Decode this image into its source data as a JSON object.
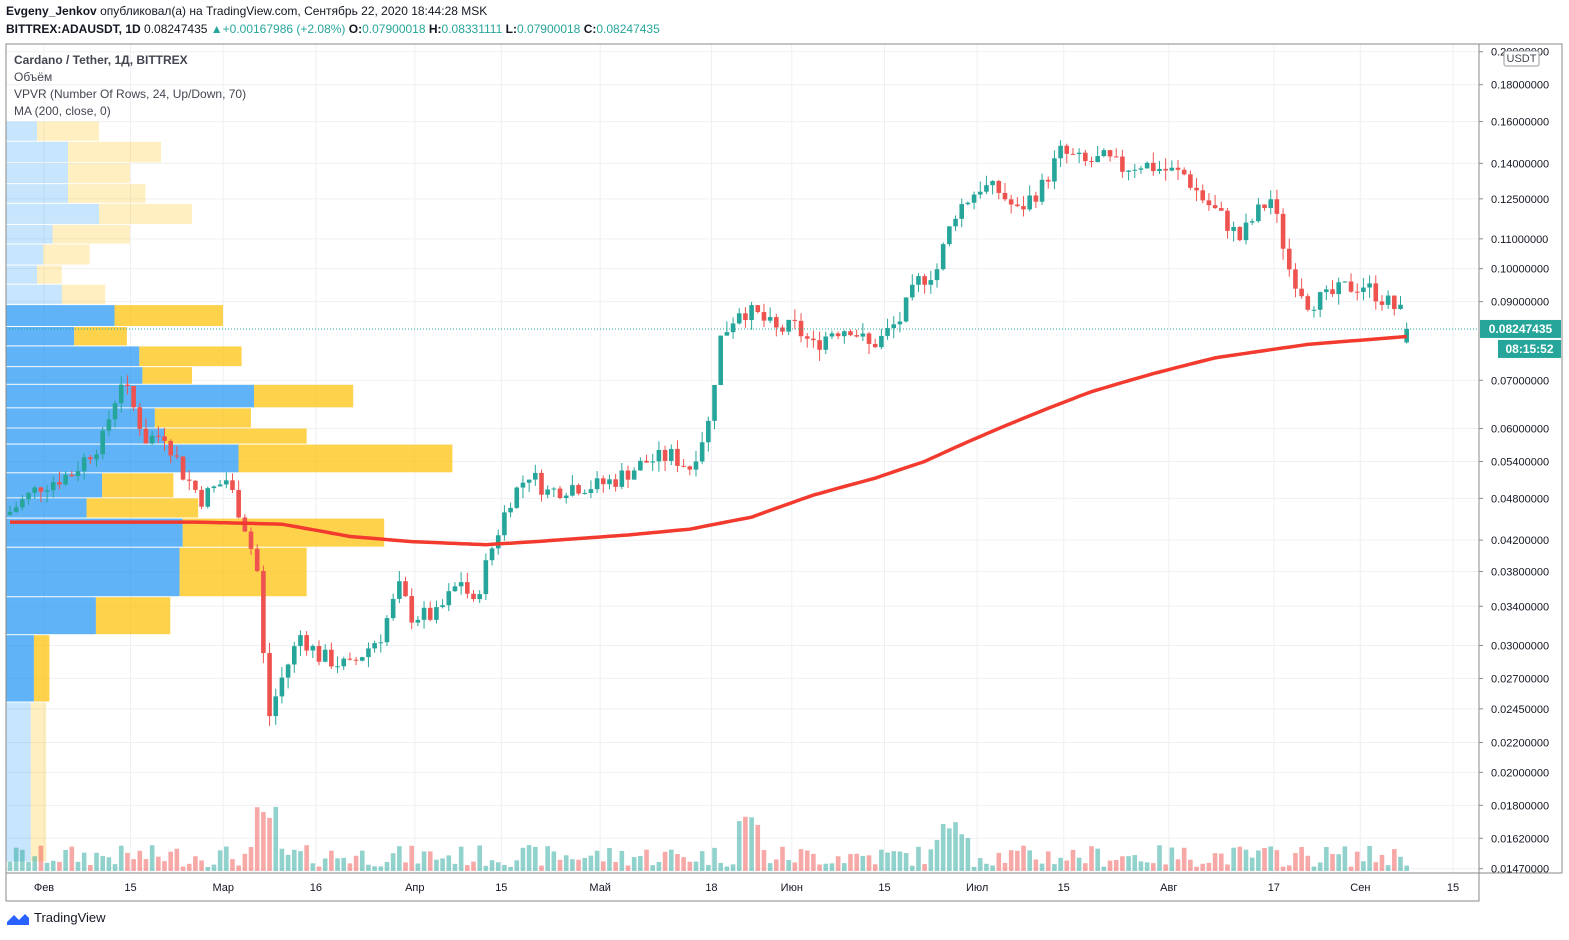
{
  "header": {
    "author": "Evgeny_Jenkov",
    "published_text": "опубликовал(а) на TradingView.com, Сентябрь 22, 2020 18:44:28 MSK",
    "symbol": "BITTREX:ADAUSDT, 1D",
    "last": "0.08247435",
    "change": "▲+0.00167986 (+2.08%)",
    "o_label": "O:",
    "o_value": "0.07900018",
    "h_label": "H:",
    "h_value": "0.08331111",
    "l_label": "L:",
    "l_value": "0.07900018",
    "c_label": "C:",
    "c_value": "0.08247435"
  },
  "legend": {
    "title": "Cardano / Tether, 1Д, BITTREX",
    "volume": "Объём",
    "vpvr": "VPVR (Number Of Rows, 24, Up/Down, 70)",
    "ma": "MA (200, close, 0)"
  },
  "footer": {
    "brand": "TradingView"
  },
  "colors": {
    "up": "#26a69a",
    "down": "#ef5350",
    "ma": "#f23b2e",
    "vp_up": "#2196f3",
    "vp_down": "#ffc107"
  },
  "chart_data": {
    "type": "candlestick",
    "title": "Cardano / Tether, 1Д, BITTREX",
    "currency": "USDT",
    "y_scale": "log",
    "ylim": [
      0.0145,
      0.205
    ],
    "y_ticks": [
      "0.20000000",
      "0.18000000",
      "0.16000000",
      "0.14000000",
      "0.12500000",
      "0.11000000",
      "0.10000000",
      "0.09000000",
      "0.07000000",
      "0.06000000",
      "0.05400000",
      "0.04800000",
      "0.04200000",
      "0.03800000",
      "0.03400000",
      "0.03000000",
      "0.02700000",
      "0.02450000",
      "0.02200000",
      "0.02000000",
      "0.01800000",
      "0.01620000",
      "0.01470000"
    ],
    "current_price_label": "0.08247435",
    "countdown_label": "08:15:52",
    "x_ticks": [
      "Фев",
      "15",
      "Мар",
      "16",
      "Апр",
      "15",
      "Май",
      "18",
      "Июн",
      "15",
      "Июл",
      "15",
      "Авг",
      "17",
      "Сен",
      "15"
    ],
    "x_tick_days": [
      0,
      14,
      29,
      44,
      60,
      74,
      90,
      108,
      121,
      136,
      151,
      165,
      182,
      199,
      213,
      228
    ],
    "start_date": "2020-01-30",
    "end_date": "2020-09-22",
    "close_anchors": [
      [
        0,
        0.046
      ],
      [
        5,
        0.05
      ],
      [
        10,
        0.052
      ],
      [
        15,
        0.058
      ],
      [
        18,
        0.07
      ],
      [
        22,
        0.058
      ],
      [
        25,
        0.059
      ],
      [
        28,
        0.052
      ],
      [
        31,
        0.048
      ],
      [
        35,
        0.051
      ],
      [
        38,
        0.044
      ],
      [
        40,
        0.038
      ],
      [
        41,
        0.029
      ],
      [
        42,
        0.024
      ],
      [
        44,
        0.027
      ],
      [
        47,
        0.031
      ],
      [
        50,
        0.029
      ],
      [
        55,
        0.028
      ],
      [
        60,
        0.031
      ],
      [
        63,
        0.036
      ],
      [
        65,
        0.033
      ],
      [
        69,
        0.033
      ],
      [
        73,
        0.037
      ],
      [
        75,
        0.034
      ],
      [
        78,
        0.041
      ],
      [
        81,
        0.048
      ],
      [
        84,
        0.052
      ],
      [
        87,
        0.049
      ],
      [
        91,
        0.05
      ],
      [
        95,
        0.05
      ],
      [
        98,
        0.051
      ],
      [
        103,
        0.054
      ],
      [
        107,
        0.055
      ],
      [
        110,
        0.053
      ],
      [
        113,
        0.061
      ],
      [
        115,
        0.08
      ],
      [
        118,
        0.088
      ],
      [
        121,
        0.086
      ],
      [
        124,
        0.082
      ],
      [
        127,
        0.083
      ],
      [
        130,
        0.078
      ],
      [
        133,
        0.082
      ],
      [
        136,
        0.083
      ],
      [
        139,
        0.078
      ],
      [
        141,
        0.08
      ],
      [
        144,
        0.085
      ],
      [
        147,
        0.096
      ],
      [
        150,
        0.1
      ],
      [
        153,
        0.12
      ],
      [
        157,
        0.13
      ],
      [
        160,
        0.128
      ],
      [
        163,
        0.12
      ],
      [
        167,
        0.13
      ],
      [
        170,
        0.145
      ],
      [
        174,
        0.14
      ],
      [
        177,
        0.142
      ],
      [
        180,
        0.138
      ],
      [
        183,
        0.14
      ],
      [
        187,
        0.137
      ],
      [
        190,
        0.135
      ],
      [
        193,
        0.125
      ],
      [
        196,
        0.118
      ],
      [
        199,
        0.11
      ],
      [
        202,
        0.12
      ],
      [
        204,
        0.125
      ],
      [
        207,
        0.1
      ],
      [
        210,
        0.09
      ],
      [
        213,
        0.091
      ],
      [
        216,
        0.094
      ],
      [
        219,
        0.095
      ],
      [
        222,
        0.091
      ],
      [
        225,
        0.087
      ],
      [
        226,
        0.0825
      ]
    ],
    "ma200_anchors": [
      [
        0,
        0.0445
      ],
      [
        15,
        0.0445
      ],
      [
        30,
        0.0445
      ],
      [
        44,
        0.0442
      ],
      [
        55,
        0.0425
      ],
      [
        65,
        0.0418
      ],
      [
        77,
        0.0414
      ],
      [
        85,
        0.0418
      ],
      [
        100,
        0.0427
      ],
      [
        110,
        0.0435
      ],
      [
        120,
        0.0452
      ],
      [
        130,
        0.0485
      ],
      [
        140,
        0.0512
      ],
      [
        148,
        0.054
      ],
      [
        155,
        0.0575
      ],
      [
        165,
        0.0625
      ],
      [
        175,
        0.0675
      ],
      [
        185,
        0.0715
      ],
      [
        195,
        0.0752
      ],
      [
        210,
        0.0785
      ],
      [
        226,
        0.0805
      ]
    ],
    "volume_profile": [
      {
        "price_low": 0.15,
        "price_high": 0.16,
        "up": 1,
        "down": 2
      },
      {
        "price_low": 0.14,
        "price_high": 0.15,
        "up": 2,
        "down": 3
      },
      {
        "price_low": 0.131,
        "price_high": 0.14,
        "up": 2,
        "down": 2
      },
      {
        "price_low": 0.123,
        "price_high": 0.131,
        "up": 2,
        "down": 2.5
      },
      {
        "price_low": 0.115,
        "price_high": 0.123,
        "up": 3,
        "down": 3
      },
      {
        "price_low": 0.108,
        "price_high": 0.115,
        "up": 1.5,
        "down": 2.5
      },
      {
        "price_low": 0.101,
        "price_high": 0.108,
        "up": 1.2,
        "down": 1.5
      },
      {
        "price_low": 0.095,
        "price_high": 0.101,
        "up": 1,
        "down": 0.8
      },
      {
        "price_low": 0.089,
        "price_high": 0.095,
        "up": 1.8,
        "down": 1.4
      },
      {
        "price_low": 0.083,
        "price_high": 0.089,
        "up": 3.5,
        "down": 3.5
      },
      {
        "price_low": 0.078,
        "price_high": 0.083,
        "up": 2.2,
        "down": 1.7
      },
      {
        "price_low": 0.073,
        "price_high": 0.078,
        "up": 4.3,
        "down": 3.3
      },
      {
        "price_low": 0.069,
        "price_high": 0.073,
        "up": 4.4,
        "down": 1.6
      },
      {
        "price_low": 0.064,
        "price_high": 0.069,
        "up": 8,
        "down": 3.2
      },
      {
        "price_low": 0.06,
        "price_high": 0.064,
        "up": 4.8,
        "down": 3.1
      },
      {
        "price_low": 0.057,
        "price_high": 0.06,
        "up": 5.1,
        "down": 4.6
      },
      {
        "price_low": 0.052,
        "price_high": 0.057,
        "up": 7.5,
        "down": 6.9
      },
      {
        "price_low": 0.048,
        "price_high": 0.052,
        "up": 3.1,
        "down": 2.3
      },
      {
        "price_low": 0.045,
        "price_high": 0.048,
        "up": 2.6,
        "down": 3.6
      },
      {
        "price_low": 0.041,
        "price_high": 0.045,
        "up": 5.7,
        "down": 6.5
      },
      {
        "price_low": 0.035,
        "price_high": 0.041,
        "up": 5.6,
        "down": 4.1
      },
      {
        "price_low": 0.031,
        "price_high": 0.035,
        "up": 2.9,
        "down": 2.4
      },
      {
        "price_low": 0.025,
        "price_high": 0.031,
        "up": 0.9,
        "down": 0.5
      },
      {
        "price_low": 0.015,
        "price_high": 0.025,
        "up": 0.8,
        "down": 0.5
      }
    ]
  }
}
